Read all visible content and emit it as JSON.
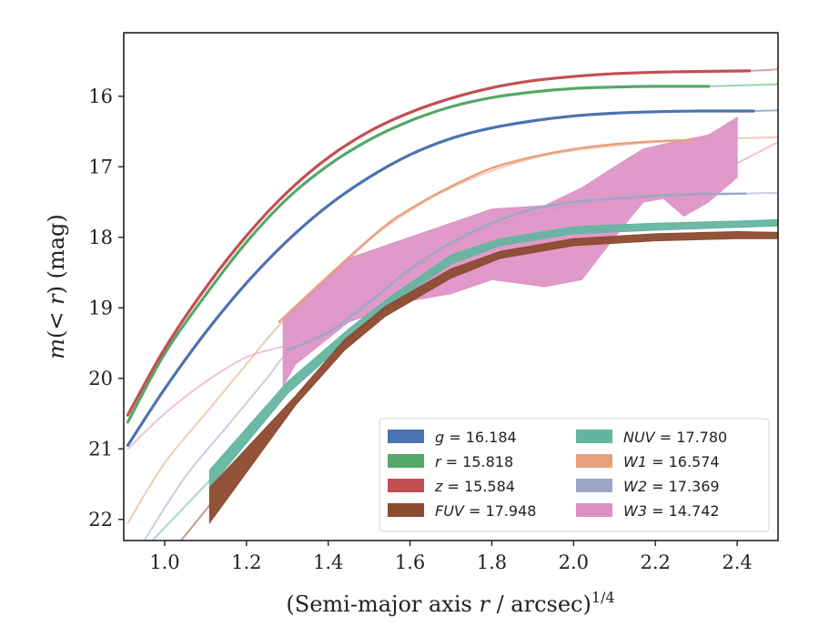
{
  "chart_data": {
    "type": "line",
    "xlabel": "(Semi-major axis r / arcsec)",
    "xlabel_parts": [
      "(Semi-major axis ",
      "r",
      " / arcsec)",
      "1/4"
    ],
    "ylabel": "m(< r) (mag)",
    "ylabel_parts": [
      "m",
      "(< ",
      "r",
      ") (mag)"
    ],
    "xlim": [
      0.9,
      2.5
    ],
    "ylim": [
      22.3,
      15.1
    ],
    "y_inverted": true,
    "xticks": [
      "1.0",
      "1.2",
      "1.4",
      "1.6",
      "1.8",
      "2.0",
      "2.2",
      "2.4"
    ],
    "yticks": [
      "16",
      "17",
      "18",
      "19",
      "20",
      "21",
      "22"
    ],
    "grid": false,
    "legend_position": "lower-right",
    "series": [
      {
        "name": "g",
        "label": "g = 16.184",
        "color": "#4c72b0",
        "kind": "line",
        "x": [
          0.91,
          1.0,
          1.1,
          1.2,
          1.3,
          1.4,
          1.5,
          1.6,
          1.7,
          1.8,
          1.9,
          2.0,
          2.1,
          2.2,
          2.3,
          2.44
        ],
        "y": [
          20.95,
          20.15,
          19.35,
          18.65,
          18.05,
          17.55,
          17.15,
          16.83,
          16.6,
          16.45,
          16.35,
          16.28,
          16.24,
          16.22,
          16.21,
          16.21
        ],
        "ext_x": [
          2.44,
          2.5
        ],
        "ext_y": [
          16.21,
          16.2
        ]
      },
      {
        "name": "r",
        "label": "r = 15.818",
        "color": "#55a868",
        "kind": "line",
        "x": [
          0.91,
          1.0,
          1.1,
          1.2,
          1.3,
          1.4,
          1.5,
          1.6,
          1.7,
          1.8,
          1.9,
          2.0,
          2.1,
          2.2,
          2.33
        ],
        "y": [
          20.62,
          19.65,
          18.82,
          18.07,
          17.45,
          16.98,
          16.62,
          16.35,
          16.15,
          16.02,
          15.94,
          15.89,
          15.87,
          15.86,
          15.86
        ],
        "ext_x": [
          2.33,
          2.5
        ],
        "ext_y": [
          15.86,
          15.83
        ]
      },
      {
        "name": "z",
        "label": "z = 15.584",
        "color": "#c44e52",
        "kind": "line",
        "x": [
          0.91,
          1.0,
          1.1,
          1.2,
          1.3,
          1.4,
          1.5,
          1.6,
          1.7,
          1.8,
          1.9,
          2.0,
          2.1,
          2.2,
          2.3,
          2.43
        ],
        "y": [
          20.52,
          19.58,
          18.72,
          17.98,
          17.36,
          16.87,
          16.5,
          16.23,
          16.03,
          15.88,
          15.78,
          15.72,
          15.68,
          15.66,
          15.65,
          15.64
        ],
        "ext_x": [
          2.43,
          2.5
        ],
        "ext_y": [
          15.64,
          15.62
        ]
      },
      {
        "name": "FUV",
        "label": "FUV = 17.948",
        "color": "#8c4a2f",
        "kind": "band",
        "x": [
          1.11,
          1.32,
          1.44,
          1.54,
          1.7,
          1.82,
          2.0,
          2.2,
          2.4,
          2.5
        ],
        "y_low": [
          21.55,
          20.25,
          19.45,
          18.98,
          18.45,
          18.2,
          18.02,
          17.95,
          17.92,
          17.93
        ],
        "y_high": [
          22.05,
          20.38,
          19.6,
          19.12,
          18.58,
          18.3,
          18.12,
          18.05,
          18.02,
          18.02
        ],
        "ext_x": [
          1.04,
          1.11
        ],
        "ext_y": [
          22.3,
          21.8
        ]
      },
      {
        "name": "NUV",
        "label": "NUV = 17.780",
        "color": "#64b5a0",
        "kind": "band",
        "x": [
          1.11,
          1.3,
          1.45,
          1.55,
          1.7,
          1.82,
          2.0,
          2.2,
          2.4,
          2.5
        ],
        "y_low": [
          21.3,
          20.05,
          19.3,
          18.85,
          18.25,
          18.02,
          17.85,
          17.8,
          17.77,
          17.75
        ],
        "y_high": [
          21.55,
          20.22,
          19.45,
          18.97,
          18.38,
          18.12,
          17.95,
          17.9,
          17.86,
          17.84
        ],
        "ext_x": [
          0.97,
          1.11
        ],
        "ext_y": [
          22.3,
          21.45
        ]
      },
      {
        "name": "W1",
        "label": "W1 = 16.574",
        "color": "#e8a07c",
        "kind": "line",
        "x": [
          1.28,
          1.4,
          1.53,
          1.6,
          1.7,
          1.8,
          1.9,
          2.0,
          2.1,
          2.2,
          2.29
        ],
        "y": [
          19.2,
          18.55,
          17.88,
          17.6,
          17.28,
          17.02,
          16.86,
          16.75,
          16.68,
          16.64,
          16.62
        ],
        "ext_x": [
          0.91,
          1.0,
          1.1,
          1.2,
          1.28,
          1.4,
          1.53,
          1.7,
          1.9,
          2.1,
          2.29,
          2.5
        ],
        "ext_y": [
          22.05,
          21.2,
          20.5,
          19.8,
          19.25,
          18.6,
          17.9,
          17.3,
          16.88,
          16.7,
          16.62,
          16.58
        ]
      },
      {
        "name": "W2",
        "label": "W2 = 17.369",
        "color": "#9aa7c8",
        "kind": "line",
        "x": [
          1.3,
          1.4,
          1.5,
          1.6,
          1.7,
          1.8,
          1.9,
          2.0,
          2.1,
          2.2,
          2.3,
          2.42
        ],
        "y": [
          19.6,
          19.35,
          18.92,
          18.45,
          18.08,
          17.8,
          17.6,
          17.5,
          17.45,
          17.41,
          17.39,
          17.38
        ],
        "ext_x": [
          0.95,
          1.05,
          1.15,
          1.25,
          1.3,
          1.4,
          1.5,
          1.6,
          1.7,
          1.8,
          2.0,
          2.2,
          2.42,
          2.5
        ],
        "ext_y": [
          22.3,
          21.4,
          20.7,
          20.0,
          19.65,
          19.3,
          18.9,
          18.5,
          18.12,
          17.85,
          17.55,
          17.43,
          17.38,
          17.37
        ]
      },
      {
        "name": "W3",
        "label": "W3 = 14.742",
        "color": "#dd8fc4",
        "kind": "band",
        "x": [
          1.29,
          1.32,
          1.45,
          1.6,
          1.7,
          1.8,
          1.93,
          2.02,
          2.1,
          2.17,
          2.22,
          2.27,
          2.33,
          2.4
        ],
        "y_low": [
          19.15,
          19.0,
          18.3,
          18.0,
          17.8,
          17.6,
          17.55,
          17.3,
          17.0,
          16.75,
          16.68,
          16.62,
          16.55,
          16.3
        ],
        "y_high": [
          20.1,
          19.8,
          19.2,
          18.9,
          18.8,
          18.6,
          18.7,
          18.6,
          18.0,
          17.5,
          17.45,
          17.7,
          17.5,
          17.15
        ],
        "ext_x": [
          0.91,
          1.0,
          1.1,
          1.2,
          1.29
        ],
        "ext_y": [
          21.0,
          20.5,
          20.05,
          19.7,
          19.55
        ],
        "ext2_x": [
          2.4,
          2.45,
          2.5
        ],
        "ext2_y": [
          16.95,
          16.8,
          16.65
        ]
      }
    ],
    "legend_columns": [
      [
        {
          "sym": "g",
          "val": " = 16.184",
          "color": "#4c72b0"
        },
        {
          "sym": "r",
          "val": " = 15.818",
          "color": "#55a868"
        },
        {
          "sym": "z",
          "val": " = 15.584",
          "color": "#c44e52"
        },
        {
          "sym": "FUV",
          "val": " = 17.948",
          "color": "#8c4a2f"
        }
      ],
      [
        {
          "sym": "NUV",
          "val": " = 17.780",
          "color": "#64b5a0"
        },
        {
          "sym": "W1",
          "val": " = 16.574",
          "color": "#e8a07c"
        },
        {
          "sym": "W2",
          "val": " = 17.369",
          "color": "#9aa7c8"
        },
        {
          "sym": "W3",
          "val": " = 14.742",
          "color": "#dd8fc4"
        }
      ]
    ]
  }
}
